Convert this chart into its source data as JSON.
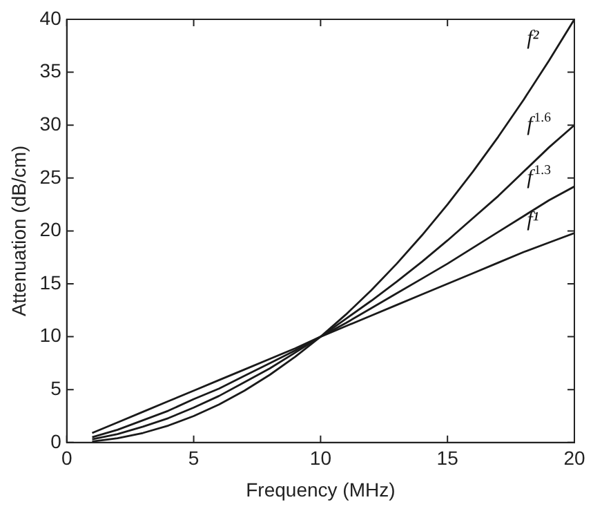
{
  "chart_data": {
    "type": "line",
    "xlabel": "Frequency (MHz)",
    "ylabel": "Attenuation (dB/cm)",
    "x": [
      1,
      2,
      3,
      4,
      5,
      6,
      7,
      8,
      9,
      10,
      11,
      12,
      13,
      14,
      15,
      16,
      17,
      18,
      19,
      20
    ],
    "series": [
      {
        "name": "f²",
        "color": "#1a1a1a",
        "values": [
          0.1,
          0.4,
          0.9,
          1.6,
          2.5,
          3.6,
          4.9,
          6.4,
          8.1,
          10,
          12.1,
          14.4,
          16.9,
          19.6,
          22.5,
          25.6,
          28.9,
          32.4,
          36.1,
          40
        ]
      },
      {
        "name": "f$^{1.6}$",
        "color": "#1a1a1a",
        "values": [
          0.3,
          0.8,
          1.5,
          2.3,
          3.3,
          4.4,
          5.7,
          7,
          8.5,
          10,
          11.7,
          13.4,
          15.2,
          17.1,
          19.1,
          21.2,
          23.3,
          25.6,
          27.9,
          30
        ]
      },
      {
        "name": "f$^{1.3}$",
        "color": "#1a1a1a",
        "values": [
          0.5,
          1.2,
          2.1,
          3,
          4.1,
          5.1,
          6.3,
          7.5,
          8.7,
          10,
          11.3,
          12.7,
          14.1,
          15.5,
          16.9,
          18.4,
          19.9,
          21.4,
          22.9,
          24.2
        ]
      },
      {
        "name": "f¹",
        "color": "#1a1a1a",
        "values": [
          0.9,
          1.9,
          2.9,
          3.9,
          4.9,
          5.9,
          6.9,
          7.9,
          8.9,
          10,
          11,
          12,
          13,
          14,
          15,
          16,
          17,
          18,
          18.9,
          19.8
        ]
      }
    ],
    "xlim": [
      0,
      20
    ],
    "xticks": [
      0,
      5,
      10,
      15,
      20
    ],
    "ylim": [
      0,
      40
    ],
    "yticks": [
      0,
      5,
      10,
      15,
      20,
      25,
      30,
      35,
      40
    ],
    "grid": false,
    "legend": "right",
    "marker": "none",
    "line_style": "solid"
  }
}
